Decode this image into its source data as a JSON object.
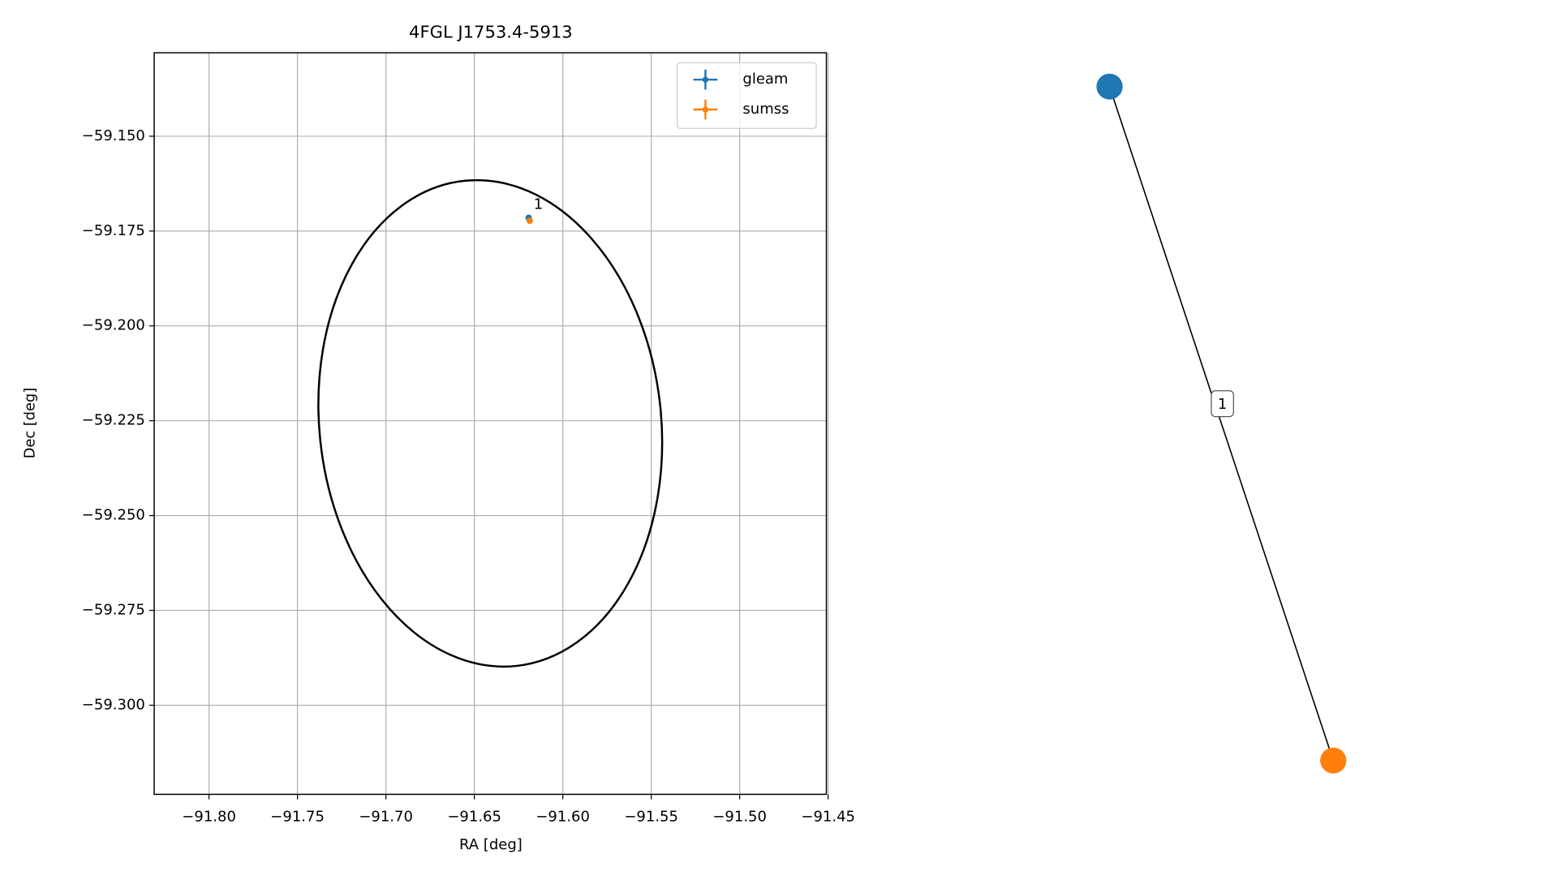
{
  "chart_data": [
    {
      "type": "scatter",
      "title": "4FGL J1753.4-5913",
      "xlabel": "RA [deg]",
      "ylabel": "Dec [deg]",
      "xlim": [
        -91.831,
        -91.451
      ],
      "ylim": [
        -59.3235,
        -59.128
      ],
      "xticks": [
        {
          "value": -91.8,
          "label": "−91.80"
        },
        {
          "value": -91.75,
          "label": "−91.75"
        },
        {
          "value": -91.7,
          "label": "−91.70"
        },
        {
          "value": -91.65,
          "label": "−91.65"
        },
        {
          "value": -91.6,
          "label": "−91.60"
        },
        {
          "value": -91.55,
          "label": "−91.55"
        },
        {
          "value": -91.5,
          "label": "−91.50"
        },
        {
          "value": -91.45,
          "label": "−91.45"
        }
      ],
      "yticks": [
        {
          "value": -59.15,
          "label": "−59.150"
        },
        {
          "value": -59.175,
          "label": "−59.175"
        },
        {
          "value": -59.2,
          "label": "−59.200"
        },
        {
          "value": -59.225,
          "label": "−59.225"
        },
        {
          "value": -59.25,
          "label": "−59.250"
        },
        {
          "value": -59.275,
          "label": "−59.275"
        },
        {
          "value": -59.3,
          "label": "−59.300"
        }
      ],
      "grid": true,
      "legend": "upper right",
      "series": [
        {
          "name": "gleam",
          "color": "#1f77b4",
          "x": [
            -91.6193
          ],
          "values": [
            -59.1715
          ]
        },
        {
          "name": "sumss",
          "color": "#ff7f0e",
          "x": [
            -91.6187
          ],
          "values": [
            -59.1723
          ]
        }
      ],
      "annotations": [
        "1"
      ],
      "ellipse": {
        "x": -91.641,
        "y": -59.2257,
        "rx": 0.0966,
        "ry": 0.0643,
        "angle": -6,
        "color": "#000000"
      }
    },
    {
      "type": "network",
      "nodes": [
        {
          "color": "#1f77b4"
        },
        {
          "color": "#ff7f0e"
        }
      ],
      "edges": [
        {
          "source": 0,
          "target": 1,
          "label": "1"
        }
      ]
    }
  ]
}
